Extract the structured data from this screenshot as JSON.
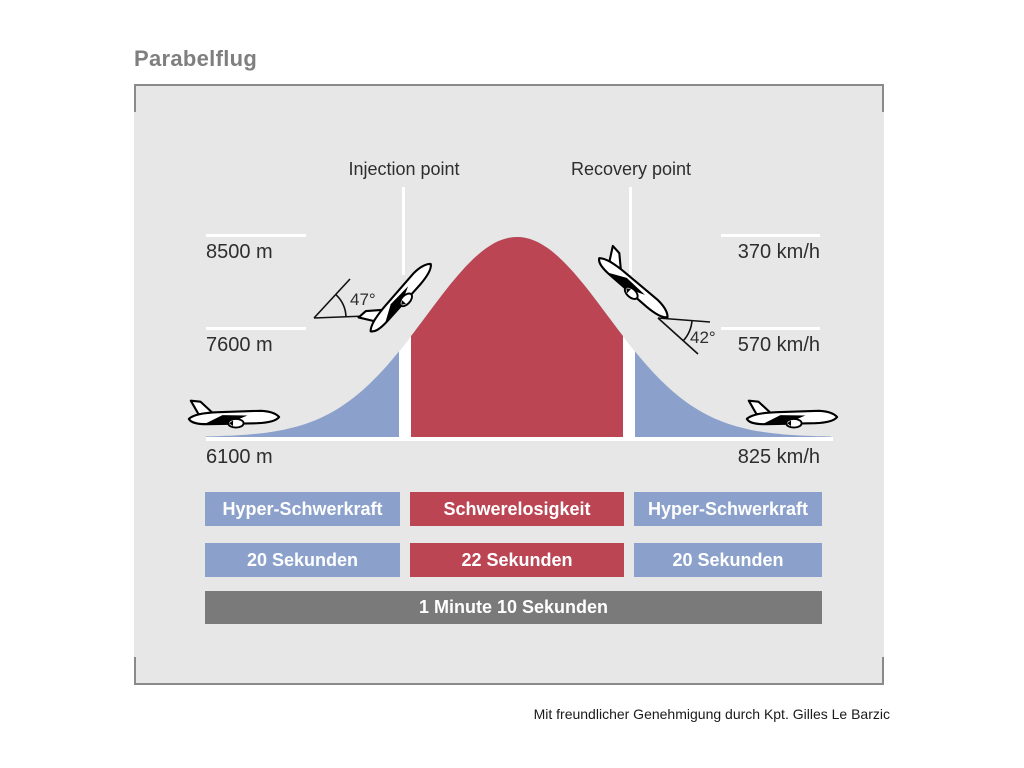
{
  "title": "Parabelflug",
  "credit": "Mit freundlicher Genehmigung durch Kpt. Gilles Le Barzic",
  "diagram": {
    "injection_label": "Injection point",
    "recovery_label": "Recovery point",
    "climb_angle": "47°",
    "descent_angle": "42°",
    "altitude_labels": [
      "8500 m",
      "7600 m",
      "6100 m"
    ],
    "speed_labels": [
      "370 km/h",
      "570 km/h",
      "825 km/h"
    ],
    "phases": [
      {
        "name": "Hyper-Schwerkraft",
        "duration": "20 Sekunden",
        "color": "#8ba1cc"
      },
      {
        "name": "Schwerelosigkeit",
        "duration": "22 Sekunden",
        "color": "#bc4554"
      },
      {
        "name": "Hyper-Schwerkraft",
        "duration": "20 Sekunden",
        "color": "#8ba1cc"
      }
    ],
    "total_duration": "1 Minute 10 Sekunden"
  },
  "colors": {
    "hyper_gravity": "#8ba1cc",
    "weightlessness": "#bc4554",
    "total_bar": "#7a7a7a",
    "panel_bg": "#e7e7e7",
    "panel_border": "#8a8a8a",
    "title_text": "#7f7f7f"
  }
}
